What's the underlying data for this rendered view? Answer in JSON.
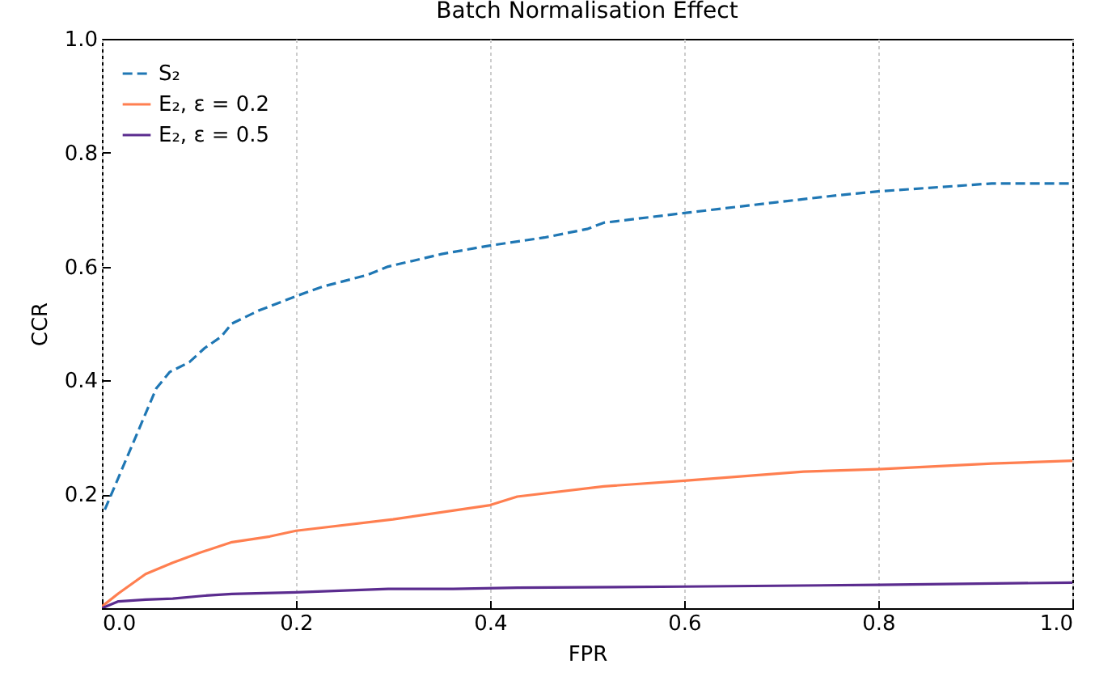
{
  "chart_data": {
    "type": "line",
    "title": "Batch Normalisation Effect",
    "xlabel": "FPR",
    "ylabel": "CCR",
    "xlim": [
      0,
      1
    ],
    "ylim": [
      0,
      1
    ],
    "xticks": [
      {
        "value": 0,
        "label": "0.0"
      },
      0.2,
      0.4,
      0.6,
      0.8,
      {
        "value": 1,
        "label": "1.0"
      }
    ],
    "yticks": [
      0.2,
      0.4,
      0.6,
      0.8,
      {
        "value": 1,
        "label": "1.0"
      }
    ],
    "grid": "x",
    "legend": "top left",
    "series": [
      {
        "name": "S₂",
        "color": "#1f77b4",
        "line_style": "dashed",
        "x": [
          0.003,
          0.056,
          0.07,
          0.09,
          0.106,
          0.123,
          0.134,
          0.162,
          0.2,
          0.228,
          0.273,
          0.295,
          0.35,
          0.4,
          0.456,
          0.5,
          0.517,
          0.6,
          0.695,
          0.757,
          0.8,
          0.917,
          1.0
        ],
        "values": [
          0.173,
          0.386,
          0.415,
          0.432,
          0.457,
          0.477,
          0.5,
          0.523,
          0.548,
          0.565,
          0.585,
          0.6,
          0.622,
          0.637,
          0.651,
          0.666,
          0.677,
          0.694,
          0.713,
          0.725,
          0.732,
          0.746,
          0.746
        ]
      },
      {
        "name": "E₂, ε = 0.2",
        "color": "#ff7f50",
        "line_style": "solid",
        "x": [
          0.0,
          0.017,
          0.045,
          0.073,
          0.1,
          0.134,
          0.173,
          0.2,
          0.3,
          0.4,
          0.428,
          0.517,
          0.6,
          0.723,
          0.8,
          0.917,
          1.0
        ],
        "values": [
          0.003,
          0.026,
          0.06,
          0.08,
          0.097,
          0.116,
          0.126,
          0.136,
          0.156,
          0.181,
          0.196,
          0.214,
          0.224,
          0.24,
          0.244,
          0.254,
          0.259
        ]
      },
      {
        "name": "E₂, ε = 0.5",
        "color": "#5b2c8f",
        "line_style": "solid",
        "x": [
          0.0,
          0.017,
          0.045,
          0.073,
          0.106,
          0.134,
          0.2,
          0.295,
          0.362,
          0.428,
          0.6,
          0.8,
          1.0
        ],
        "values": [
          0.0,
          0.012,
          0.015,
          0.017,
          0.022,
          0.025,
          0.028,
          0.034,
          0.034,
          0.036,
          0.038,
          0.041,
          0.045
        ]
      }
    ]
  }
}
